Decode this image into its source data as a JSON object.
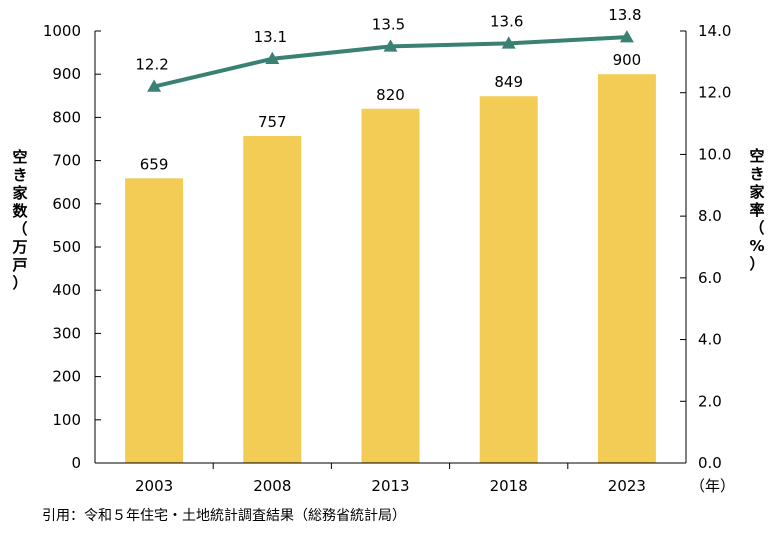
{
  "chart_data": {
    "type": "bar",
    "categories": [
      "2003",
      "2008",
      "2013",
      "2018",
      "2023"
    ],
    "series": [
      {
        "type": "bar",
        "values": [
          659,
          757,
          820,
          849,
          900
        ],
        "color": "#F2CC55",
        "axis": "left"
      },
      {
        "type": "line",
        "values": [
          12.2,
          13.1,
          13.5,
          13.6,
          13.8
        ],
        "color": "#3A8073",
        "marker": "triangle",
        "axis": "right"
      }
    ],
    "ylabel_left": "空き家数（万戸）",
    "ylabel_right": "空き家率（%）",
    "x_unit": "（年）",
    "ylim_left": [
      0,
      1000
    ],
    "ylim_right": [
      0.0,
      14.0
    ],
    "yticks_left": [
      "0",
      "100",
      "200",
      "300",
      "400",
      "500",
      "600",
      "700",
      "800",
      "900",
      "1000"
    ],
    "yticks_right": [
      "0.0",
      "2.0",
      "4.0",
      "6.0",
      "8.0",
      "10.0",
      "12.0",
      "14.0"
    ],
    "bar_labels": [
      "659",
      "757",
      "820",
      "849",
      "900"
    ],
    "line_labels": [
      "12.2",
      "13.1",
      "13.5",
      "13.6",
      "13.8"
    ],
    "grid": false,
    "source": "引用：令和５年住宅・土地統計調査結果（総務省統計局）"
  }
}
